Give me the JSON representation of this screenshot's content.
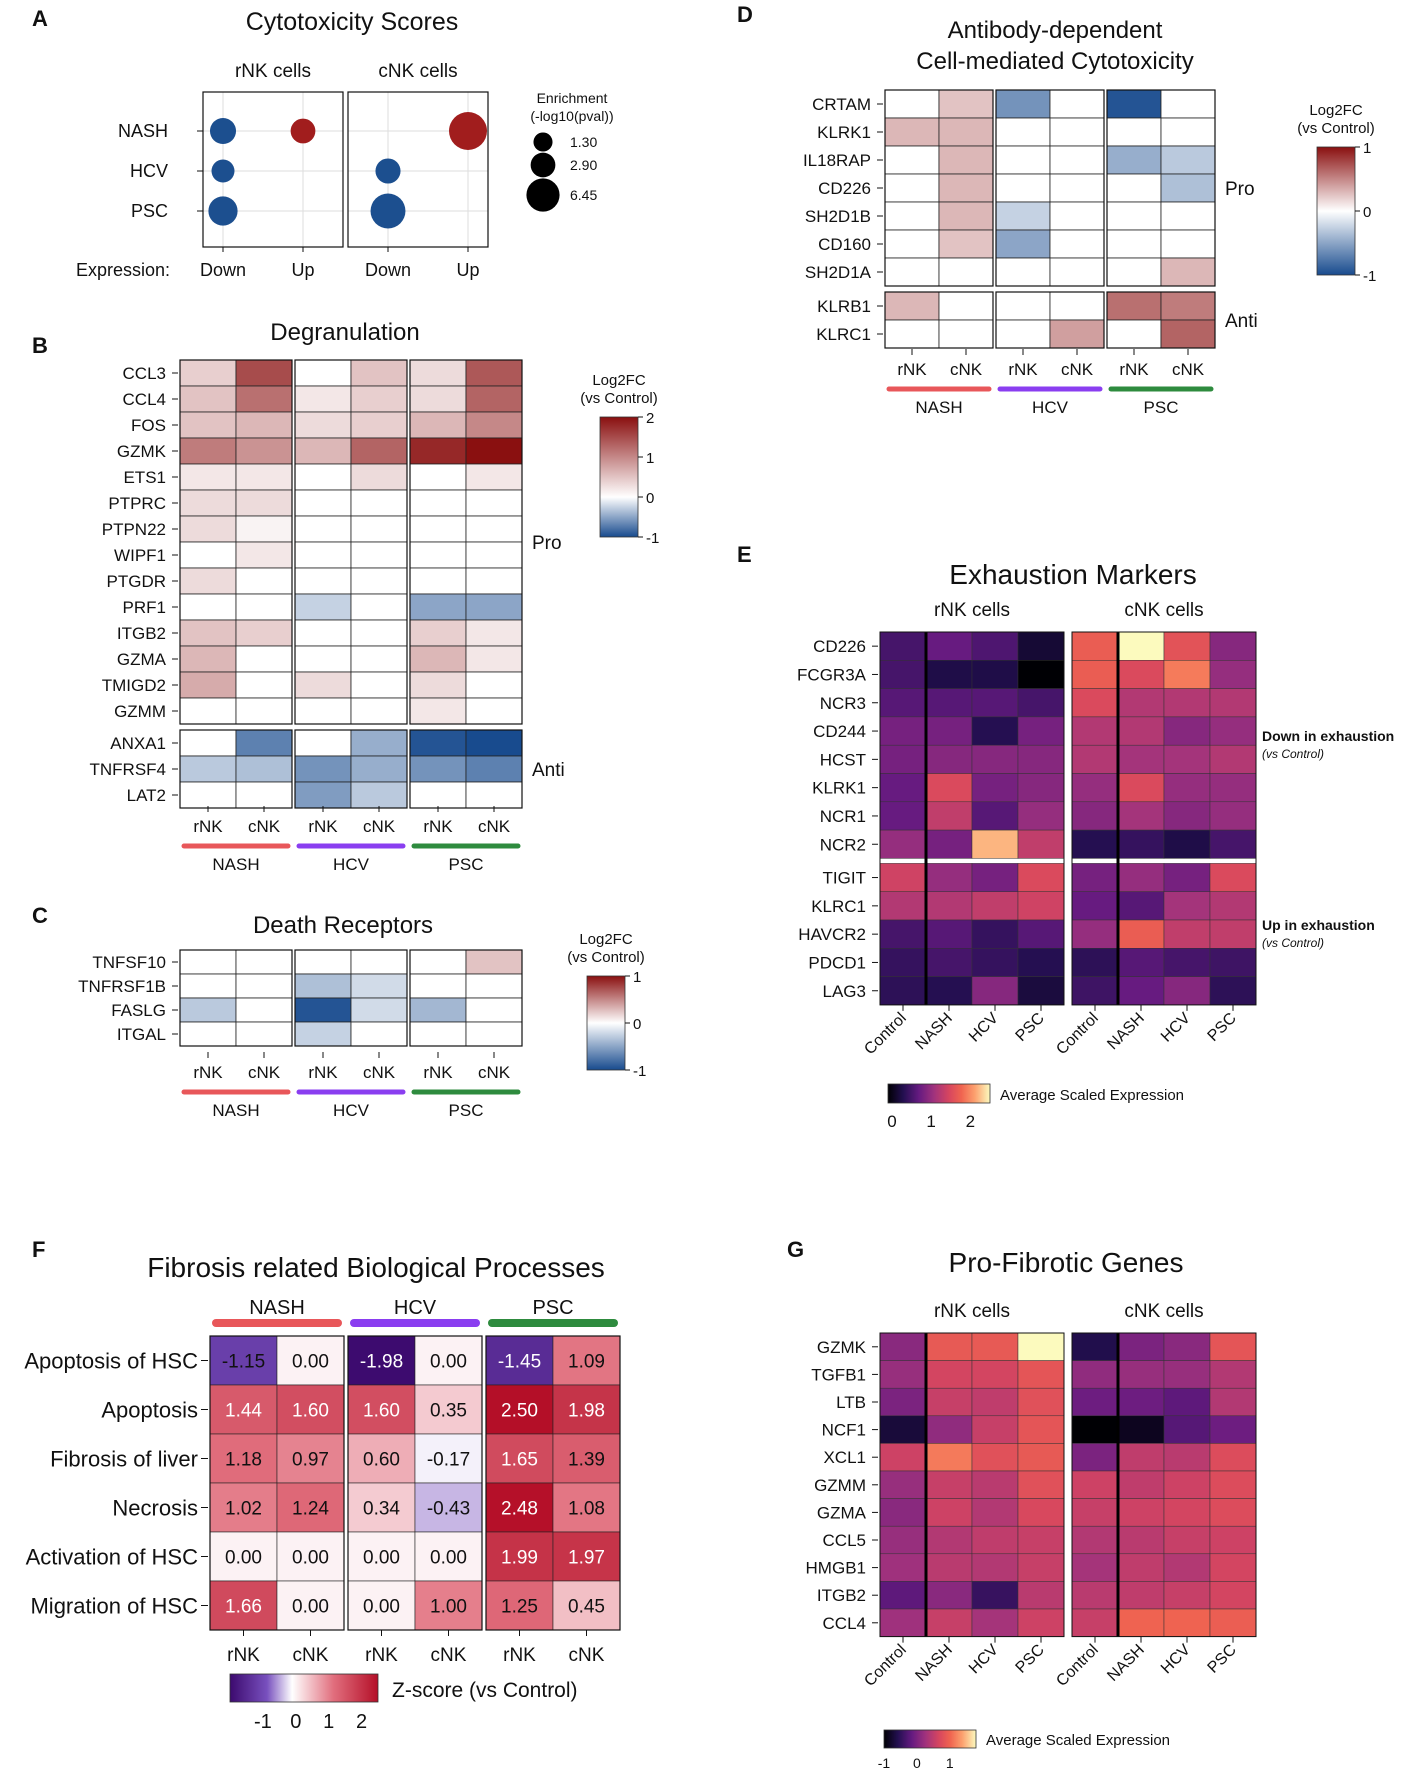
{
  "chart_data": [
    {
      "id": "A",
      "panel_label": "A",
      "type": "scatter",
      "title": "Cytotoxicity Scores",
      "facets": [
        "rNK cells",
        "cNK cells"
      ],
      "rows": [
        "NASH",
        "HCV",
        "PSC"
      ],
      "x_categories": [
        "Down",
        "Up"
      ],
      "x_axis_label": "Expression:",
      "legend_title": "Enrichment",
      "legend_subtitle": "(-log10(pval))",
      "legend_values": [
        1.3,
        2.9,
        6.45
      ],
      "legend_labels": [
        "1.30",
        "2.90",
        "6.45"
      ],
      "colors": {
        "Down": "#1c4f8f",
        "Up": "#a11d1d"
      },
      "points": [
        {
          "facet": 0,
          "row": 0,
          "x": 0,
          "size": 2.9
        },
        {
          "facet": 0,
          "row": 0,
          "x": 1,
          "size": 2.5
        },
        {
          "facet": 0,
          "row": 1,
          "x": 0,
          "size": 2.0
        },
        {
          "facet": 0,
          "row": 2,
          "x": 0,
          "size": 4.0
        },
        {
          "facet": 1,
          "row": 0,
          "x": 1,
          "size": 8.0
        },
        {
          "facet": 1,
          "row": 1,
          "x": 0,
          "size": 2.6
        },
        {
          "facet": 1,
          "row": 2,
          "x": 0,
          "size": 6.45
        }
      ]
    },
    {
      "id": "B",
      "panel_label": "B",
      "type": "heatmap",
      "title": "Degranulation",
      "rows": [
        "CCL3",
        "CCL4",
        "FOS",
        "GZMK",
        "ETS1",
        "PTPRC",
        "PTPN22",
        "WIPF1",
        "PTGDR",
        "PRF1",
        "ITGB2",
        "GZMA",
        "TMIGD2",
        "GZMM",
        "ANXA1",
        "TNFRSF4",
        "LAT2"
      ],
      "row_groups": [
        {
          "label": "Pro",
          "count": 14
        },
        {
          "label": "Anti",
          "count": 3
        }
      ],
      "groups": [
        "NASH",
        "HCV",
        "PSC"
      ],
      "subcols": [
        "rNK",
        "cNK"
      ],
      "values": [
        [
          0.4,
          1.5,
          0,
          0.5,
          0.3,
          1.4
        ],
        [
          0.5,
          1.2,
          0.2,
          0.4,
          0.3,
          1.3
        ],
        [
          0.5,
          0.6,
          0.3,
          0.4,
          0.6,
          1.0
        ],
        [
          1.1,
          0.9,
          0.6,
          1.3,
          1.8,
          2.4
        ],
        [
          0.2,
          0.2,
          0,
          0.3,
          0,
          0.2
        ],
        [
          0.3,
          0.3,
          0,
          0,
          0,
          0
        ],
        [
          0.3,
          0.1,
          0,
          0,
          0,
          0
        ],
        [
          0,
          0.2,
          0,
          0,
          0,
          0
        ],
        [
          0.3,
          0,
          0,
          0,
          0,
          0
        ],
        [
          0,
          0,
          -0.25,
          0,
          -0.5,
          -0.5
        ],
        [
          0.5,
          0.4,
          0,
          0,
          0.4,
          0.2
        ],
        [
          0.6,
          0,
          0,
          0,
          0.6,
          0.2
        ],
        [
          0.7,
          0,
          0.3,
          0,
          0.3,
          0
        ],
        [
          0,
          0,
          0,
          0,
          0.2,
          0
        ],
        [
          0,
          -0.7,
          0,
          -0.45,
          -0.95,
          -1.0
        ],
        [
          -0.3,
          -0.35,
          -0.6,
          -0.45,
          -0.6,
          -0.7
        ],
        [
          0,
          0,
          -0.55,
          -0.3,
          0,
          0
        ]
      ],
      "legend": {
        "title": "Log2FC",
        "subtitle": "(vs Control)",
        "min": -1,
        "max": 2,
        "ticks": [
          "2",
          "1",
          "0",
          "-1"
        ]
      }
    },
    {
      "id": "C",
      "panel_label": "C",
      "type": "heatmap",
      "title": "Death Receptors",
      "rows": [
        "TNFSF10",
        "TNFRSF1B",
        "FASLG",
        "ITGAL"
      ],
      "groups": [
        "NASH",
        "HCV",
        "PSC"
      ],
      "subcols": [
        "rNK",
        "cNK"
      ],
      "values": [
        [
          0,
          0,
          0,
          0,
          0,
          0.25
        ],
        [
          0,
          0,
          -0.35,
          -0.2,
          0,
          0
        ],
        [
          -0.3,
          0,
          -0.95,
          -0.2,
          -0.4,
          0
        ],
        [
          0,
          0,
          -0.25,
          0,
          0,
          0
        ]
      ],
      "legend": {
        "title": "Log2FC",
        "subtitle": "(vs Control)",
        "min": -1,
        "max": 1,
        "ticks": [
          "1",
          "0",
          "-1"
        ]
      }
    },
    {
      "id": "D",
      "panel_label": "D",
      "type": "heatmap",
      "title_lines": [
        "Antibody-dependent",
        "Cell-mediated Cytotoxicity"
      ],
      "rows": [
        "CRTAM",
        "KLRK1",
        "IL18RAP",
        "CD226",
        "SH2D1B",
        "CD160",
        "SH2D1A",
        "KLRB1",
        "KLRC1"
      ],
      "row_groups": [
        {
          "label": "Pro",
          "count": 7
        },
        {
          "label": "Anti",
          "count": 2
        }
      ],
      "groups": [
        "NASH",
        "HCV",
        "PSC"
      ],
      "subcols": [
        "rNK",
        "cNK"
      ],
      "values": [
        [
          0,
          0.25,
          -0.6,
          0,
          -0.95,
          0
        ],
        [
          0.3,
          0.3,
          0,
          0,
          0,
          0
        ],
        [
          0,
          0.3,
          0,
          0,
          -0.45,
          -0.3
        ],
        [
          0,
          0.3,
          0,
          0,
          0,
          -0.35
        ],
        [
          0,
          0.3,
          -0.25,
          0,
          0,
          0
        ],
        [
          0,
          0.25,
          -0.5,
          0,
          0,
          0
        ],
        [
          0,
          0,
          0,
          0,
          0,
          0.3
        ],
        [
          0.3,
          0,
          0,
          0,
          0.6,
          0.55
        ],
        [
          0,
          0,
          0,
          0.4,
          0,
          0.65
        ]
      ],
      "legend": {
        "title": "Log2FC",
        "subtitle": "(vs Control)",
        "min": -1,
        "max": 1,
        "ticks": [
          "1",
          "0",
          "-1"
        ]
      }
    },
    {
      "id": "E",
      "panel_label": "E",
      "type": "heatmap",
      "title": "Exhaustion Markers",
      "facets": [
        "rNK cells",
        "cNK cells"
      ],
      "rows": [
        "CD226",
        "FCGR3A",
        "NCR3",
        "CD244",
        "HCST",
        "KLRK1",
        "NCR1",
        "NCR2",
        "TIGIT",
        "KLRC1",
        "HAVCR2",
        "PDCD1",
        "LAG3"
      ],
      "conditions": [
        "Control",
        "NASH",
        "HCV",
        "PSC"
      ],
      "row_groups": [
        {
          "label": "Down in exhaustion",
          "sub": "(vs Control)",
          "count": 8
        },
        {
          "label": "Up in exhaustion",
          "sub": "(vs Control)",
          "count": 5
        }
      ],
      "values": [
        [
          0.5,
          0.7,
          0.55,
          0.15,
          1.7,
          2.5,
          1.6,
          0.9
        ],
        [
          0.5,
          0.25,
          0.25,
          -0.1,
          1.7,
          1.5,
          1.9,
          1.0
        ],
        [
          0.6,
          0.6,
          0.6,
          0.5,
          1.5,
          1.2,
          1.2,
          1.2
        ],
        [
          0.8,
          0.8,
          0.3,
          0.8,
          1.2,
          1.2,
          0.9,
          1.0
        ],
        [
          0.8,
          0.9,
          0.9,
          0.9,
          1.2,
          1.1,
          1.1,
          1.2
        ],
        [
          0.7,
          1.5,
          0.8,
          0.9,
          1.0,
          1.5,
          1.0,
          1.0
        ],
        [
          0.7,
          1.3,
          0.6,
          1.0,
          0.9,
          1.1,
          0.9,
          1.0
        ],
        [
          1.0,
          0.8,
          2.2,
          1.3,
          0.3,
          0.4,
          0.25,
          0.5
        ],
        [
          1.4,
          1.0,
          0.8,
          1.5,
          0.8,
          1.0,
          0.8,
          1.5
        ],
        [
          1.2,
          1.2,
          1.3,
          1.4,
          0.7,
          0.6,
          1.1,
          1.2
        ],
        [
          0.5,
          0.6,
          0.4,
          0.6,
          1.0,
          1.7,
          1.3,
          1.3
        ],
        [
          0.4,
          0.5,
          0.4,
          0.3,
          0.35,
          0.6,
          0.5,
          0.45
        ],
        [
          0.35,
          0.3,
          0.9,
          0.2,
          0.45,
          0.7,
          0.9,
          0.35
        ]
      ],
      "legend": {
        "title": "Average Scaled Expression",
        "min": -0.1,
        "max": 2.5,
        "ticks": [
          "0",
          "1",
          "2"
        ]
      }
    },
    {
      "id": "F",
      "panel_label": "F",
      "type": "table",
      "title": "Fibrosis related Biological Processes",
      "rows": [
        "Apoptosis of HSC",
        "Apoptosis",
        "Fibrosis of liver",
        "Necrosis",
        "Activation of HSC",
        "Migration of HSC"
      ],
      "groups": [
        "NASH",
        "HCV",
        "PSC"
      ],
      "subcols": [
        "rNK",
        "cNK"
      ],
      "values": [
        [
          -1.15,
          0.0,
          -1.98,
          0.0,
          -1.45,
          1.09
        ],
        [
          1.44,
          1.6,
          1.6,
          0.35,
          2.5,
          1.98
        ],
        [
          1.18,
          0.97,
          0.6,
          -0.17,
          1.65,
          1.39
        ],
        [
          1.02,
          1.24,
          0.34,
          -0.43,
          2.48,
          1.08
        ],
        [
          0.0,
          0.0,
          0.0,
          0.0,
          1.99,
          1.97
        ],
        [
          1.66,
          0.0,
          0.0,
          1.0,
          1.25,
          0.45
        ]
      ],
      "labels": [
        [
          "-1.15",
          "0.00",
          "-1.98",
          "0.00",
          "-1.45",
          "1.09"
        ],
        [
          "1.44",
          "1.60",
          "1.60",
          "0.35",
          "2.50",
          "1.98"
        ],
        [
          "1.18",
          "0.97",
          "0.60",
          "-0.17",
          "1.65",
          "1.39"
        ],
        [
          "1.02",
          "1.24",
          "0.34",
          "-0.43",
          "2.48",
          "1.08"
        ],
        [
          "0.00",
          "0.00",
          "0.00",
          "0.00",
          "1.99",
          "1.97"
        ],
        [
          "1.66",
          "0.00",
          "0.00",
          "1.00",
          "1.25",
          "0.45"
        ]
      ],
      "legend": {
        "title": "Z-score (vs Control)",
        "min": -2,
        "max": 2.5,
        "ticks": [
          "-1",
          "0",
          "1",
          "2"
        ]
      }
    },
    {
      "id": "G",
      "panel_label": "G",
      "type": "heatmap",
      "title": "Pro-Fibrotic Genes",
      "facets": [
        "rNK cells",
        "cNK cells"
      ],
      "rows": [
        "GZMK",
        "TGFB1",
        "LTB",
        "NCF1",
        "XCL1",
        "GZMM",
        "GZMA",
        "CCL5",
        "HMGB1",
        "ITGB2",
        "CCL4"
      ],
      "conditions": [
        "Control",
        "NASH",
        "HCV",
        "PSC"
      ],
      "values": [
        [
          0.1,
          0.9,
          0.9,
          1.8,
          -0.6,
          0.0,
          0.1,
          0.85
        ],
        [
          0.2,
          0.65,
          0.65,
          0.85,
          0.15,
          0.2,
          0.2,
          0.4
        ],
        [
          0.0,
          0.55,
          0.5,
          0.8,
          -0.1,
          -0.1,
          -0.2,
          0.4
        ],
        [
          -0.7,
          0.15,
          0.55,
          0.85,
          -1.0,
          -0.85,
          -0.25,
          -0.1
        ],
        [
          0.6,
          1.15,
          0.8,
          0.9,
          0.0,
          0.5,
          0.45,
          0.75
        ],
        [
          0.2,
          0.55,
          0.45,
          0.8,
          0.6,
          0.5,
          0.6,
          0.75
        ],
        [
          0.1,
          0.6,
          0.4,
          0.7,
          0.55,
          0.6,
          0.65,
          0.75
        ],
        [
          0.2,
          0.4,
          0.5,
          0.55,
          0.4,
          0.45,
          0.55,
          0.6
        ],
        [
          0.25,
          0.45,
          0.4,
          0.55,
          0.3,
          0.5,
          0.4,
          0.65
        ],
        [
          -0.2,
          0.1,
          -0.45,
          0.45,
          0.45,
          0.5,
          0.55,
          0.65
        ],
        [
          0.25,
          0.55,
          0.3,
          0.6,
          0.55,
          1.0,
          1.0,
          0.95
        ]
      ],
      "legend": {
        "title": "Average Scaled Expression",
        "min": -1,
        "max": 1.8,
        "ticks": [
          "-1",
          "0",
          "1"
        ]
      }
    }
  ]
}
